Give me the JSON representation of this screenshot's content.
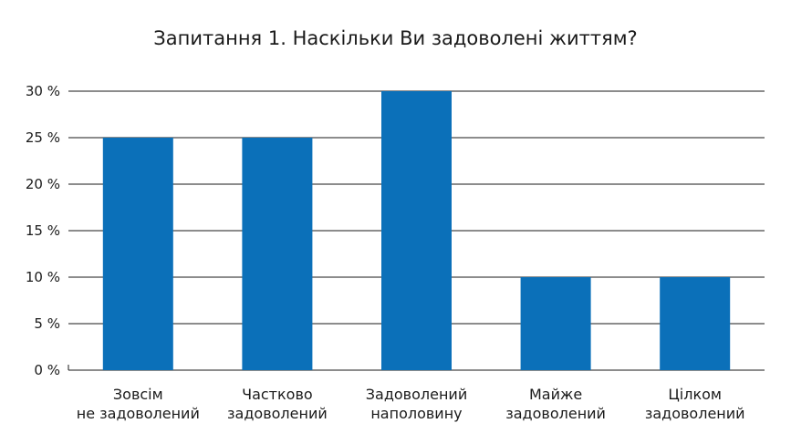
{
  "chart_data": {
    "type": "bar",
    "title": "Запитання 1. Наскільки Ви задоволені життям?",
    "categories": [
      [
        "Зовсім",
        "не задоволений"
      ],
      [
        "Частково",
        "задоволений"
      ],
      [
        "Задоволений",
        "наполовину"
      ],
      [
        "Майже",
        "задоволений"
      ],
      [
        "Цілком",
        "задоволений"
      ]
    ],
    "values": [
      25,
      25,
      30,
      10,
      10
    ],
    "ylim": [
      0,
      30
    ],
    "yticks": [
      "0 %",
      "5 %",
      "10 %",
      "15 %",
      "20 %",
      "25 %",
      "30 %"
    ],
    "grid": true,
    "bar_color": "#0b70b9",
    "grid_color": "#1a1a1a"
  }
}
